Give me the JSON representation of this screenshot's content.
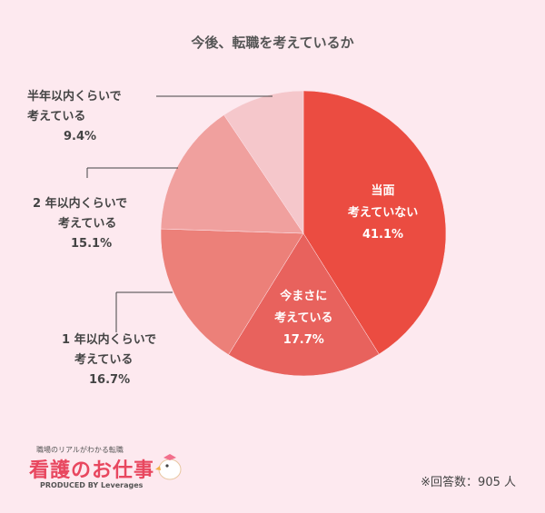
{
  "chart_data": {
    "type": "pie",
    "title": "今後、転職を考えているか",
    "slices": [
      {
        "label_lines": [
          "当面",
          "考えていない"
        ],
        "value": 41.1,
        "value_text": "41.1%",
        "color": "#eb4c41",
        "label_position": "inside"
      },
      {
        "label_lines": [
          "今まさに",
          "考えている"
        ],
        "value": 17.7,
        "value_text": "17.7%",
        "color": "#e8625d",
        "label_position": "inside"
      },
      {
        "label_lines": [
          "1 年以内くらいで",
          "考えている"
        ],
        "value": 16.7,
        "value_text": "16.7%",
        "color": "#ec8079",
        "label_position": "outside"
      },
      {
        "label_lines": [
          "2 年以内くらいで",
          "考えている"
        ],
        "value": 15.1,
        "value_text": "15.1%",
        "color": "#f0a09e",
        "label_position": "outside"
      },
      {
        "label_lines": [
          "半年以内くらいで",
          "考えている"
        ],
        "value": 9.4,
        "value_text": "9.4%",
        "color": "#f5c7cb",
        "label_position": "outside"
      }
    ]
  },
  "logo": {
    "tagline": "職場のリアルがわかる転職",
    "name": "看護のお仕事",
    "produced_by": "PRODUCED BY Leverages"
  },
  "note": "※回答数：905 人"
}
